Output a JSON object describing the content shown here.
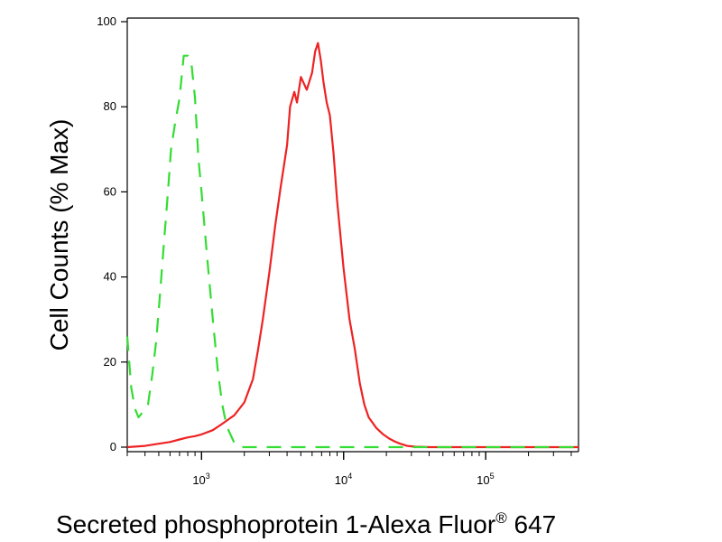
{
  "chart_data": {
    "type": "line",
    "title": "",
    "xlabel": "Secreted phosphoprotein 1-Alexa Fluor",
    "xlabel_mark": "®",
    "xlabel_suffix": " 647",
    "ylabel": "Cell Counts (% Max)",
    "x_scale": "log",
    "xlim": [
      300,
      450000
    ],
    "ylim": [
      0,
      100
    ],
    "y_ticks": [
      0,
      20,
      40,
      60,
      80,
      100
    ],
    "x_ticks": [
      {
        "value": 1000,
        "base": "10",
        "exp": "3"
      },
      {
        "value": 10000,
        "base": "10",
        "exp": "4"
      },
      {
        "value": 100000,
        "base": "10",
        "exp": "5"
      }
    ],
    "grid": false,
    "series": [
      {
        "color": "#ee2222",
        "dash": "solid",
        "x": [
          300,
          400,
          500,
          600,
          700,
          800,
          900,
          1000,
          1200,
          1400,
          1700,
          2000,
          2300,
          2500,
          2700,
          3000,
          3300,
          3600,
          4000,
          4200,
          4500,
          4700,
          5000,
          5500,
          6000,
          6300,
          6600,
          6900,
          7200,
          7600,
          8000,
          8500,
          9000,
          10000,
          11000,
          12000,
          13000,
          14000,
          15000,
          17000,
          19000,
          21000,
          23000,
          25000,
          28000,
          32000,
          40000,
          60000,
          100000,
          450000
        ],
        "y": [
          0,
          0.3,
          0.8,
          1.2,
          1.8,
          2.3,
          2.6,
          3,
          4,
          5.5,
          7.5,
          10.5,
          16,
          23,
          30,
          41,
          52,
          61,
          71,
          80,
          83.5,
          81,
          87,
          84,
          88,
          93,
          95,
          91,
          86,
          81,
          78,
          69,
          58,
          42,
          30,
          23,
          15,
          10,
          7,
          4.5,
          3,
          2,
          1.3,
          0.8,
          0.3,
          0.1,
          0,
          0,
          0,
          0
        ]
      },
      {
        "color": "#33dd33",
        "dash": "dashed",
        "x": [
          300,
          310,
          320,
          340,
          360,
          380,
          420,
          450,
          480,
          510,
          550,
          580,
          610,
          650,
          700,
          750,
          800,
          850,
          900,
          950,
          1000,
          1100,
          1200,
          1300,
          1400,
          1500,
          1700,
          1900,
          2200,
          450000
        ],
        "y": [
          26,
          20,
          14,
          9,
          7,
          8,
          10,
          17,
          25,
          36,
          50,
          60,
          70,
          76,
          82,
          92,
          92,
          90,
          82,
          68,
          60,
          44,
          30,
          18,
          10,
          5,
          1,
          0,
          0,
          0
        ]
      }
    ]
  }
}
